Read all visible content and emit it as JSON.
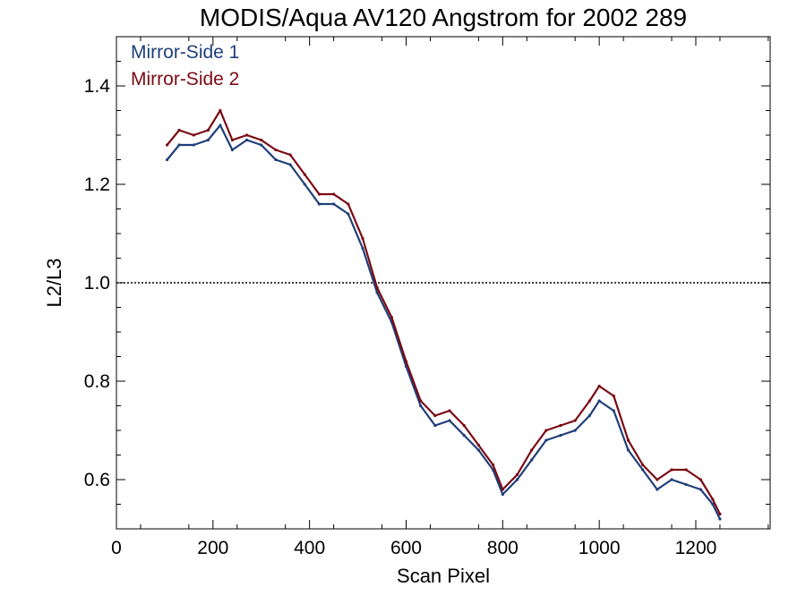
{
  "chart_data": {
    "type": "line",
    "title": "MODIS/Aqua AV120 Angstrom for 2002 289",
    "xlabel": "Scan Pixel",
    "ylabel": "L2/L3",
    "xlim": [
      0,
      1354
    ],
    "ylim": [
      0.5,
      1.5
    ],
    "x_ticks": [
      0,
      200,
      400,
      600,
      800,
      1000,
      1200
    ],
    "y_ticks": [
      0.6,
      0.8,
      1.0,
      1.2,
      1.4
    ],
    "x_tick_labels": [
      "0",
      "200",
      "400",
      "600",
      "800",
      "1000",
      "1200"
    ],
    "y_tick_labels": [
      "0.6",
      "0.8",
      "1.0",
      "1.2",
      "1.4"
    ],
    "reference_line": {
      "y": 1.0,
      "style": "dotted"
    },
    "grid": false,
    "legend_position": "top-left",
    "colors": {
      "mirror_side_1": "#1f3f7a",
      "mirror_side_2": "#7a0a14"
    },
    "x": [
      105,
      130,
      160,
      190,
      215,
      240,
      270,
      300,
      330,
      360,
      390,
      420,
      450,
      480,
      510,
      540,
      570,
      600,
      630,
      660,
      690,
      720,
      750,
      780,
      800,
      830,
      860,
      890,
      920,
      950,
      980,
      1000,
      1030,
      1060,
      1090,
      1120,
      1150,
      1180,
      1210,
      1235,
      1250
    ],
    "series": [
      {
        "name": "Mirror-Side 1",
        "color": "#1f3f7a",
        "values": [
          1.25,
          1.28,
          1.28,
          1.29,
          1.32,
          1.27,
          1.29,
          1.28,
          1.25,
          1.24,
          1.2,
          1.16,
          1.16,
          1.14,
          1.07,
          0.98,
          0.92,
          0.83,
          0.75,
          0.71,
          0.72,
          0.69,
          0.66,
          0.62,
          0.57,
          0.6,
          0.64,
          0.68,
          0.69,
          0.7,
          0.73,
          0.76,
          0.74,
          0.66,
          0.62,
          0.58,
          0.6,
          0.59,
          0.58,
          0.55,
          0.52
        ]
      },
      {
        "name": "Mirror-Side 2",
        "color": "#7a0a14",
        "values": [
          1.28,
          1.31,
          1.3,
          1.31,
          1.35,
          1.29,
          1.3,
          1.29,
          1.27,
          1.26,
          1.22,
          1.18,
          1.18,
          1.16,
          1.09,
          0.99,
          0.93,
          0.84,
          0.76,
          0.73,
          0.74,
          0.71,
          0.67,
          0.63,
          0.58,
          0.61,
          0.66,
          0.7,
          0.71,
          0.72,
          0.76,
          0.79,
          0.77,
          0.68,
          0.63,
          0.6,
          0.62,
          0.62,
          0.6,
          0.56,
          0.53
        ]
      }
    ]
  }
}
